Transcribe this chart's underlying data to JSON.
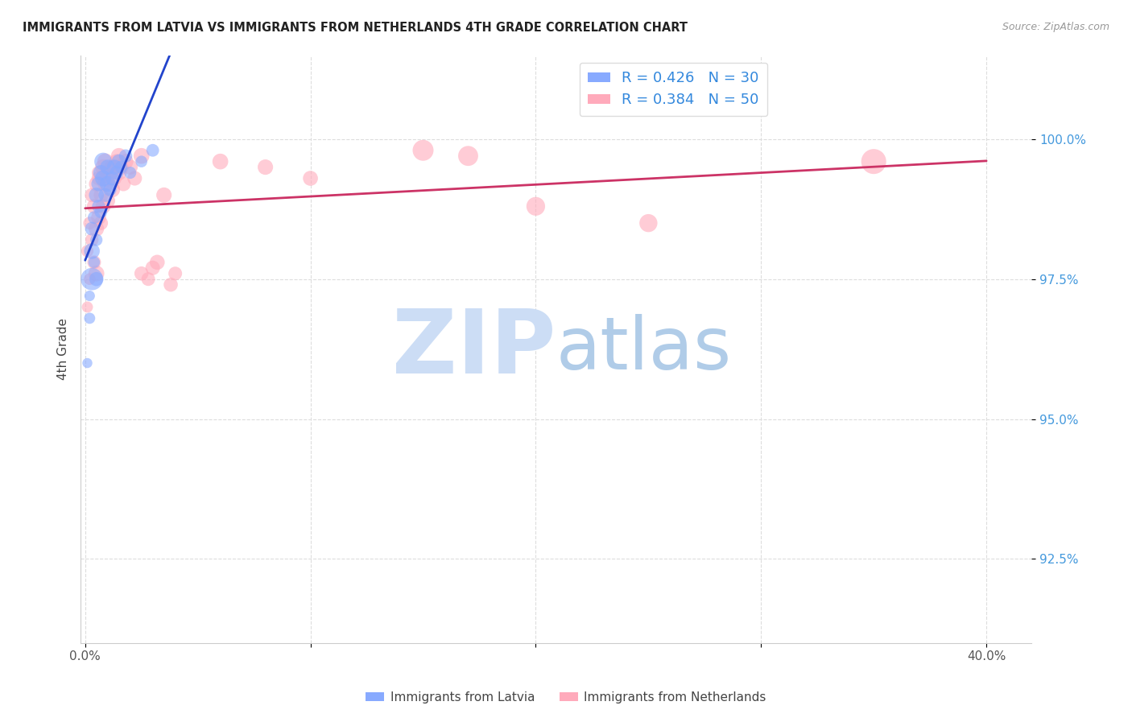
{
  "title": "IMMIGRANTS FROM LATVIA VS IMMIGRANTS FROM NETHERLANDS 4TH GRADE CORRELATION CHART",
  "source": "Source: ZipAtlas.com",
  "xlabel_label": "Immigrants from Latvia",
  "ylabel_label": "4th Grade",
  "xlim": [
    -0.002,
    0.42
  ],
  "ylim": [
    91.0,
    101.5
  ],
  "x_ticks": [
    0.0,
    0.1,
    0.2,
    0.3,
    0.4
  ],
  "x_tick_labels": [
    "0.0%",
    "",
    "",
    "",
    "40.0%"
  ],
  "y_ticks": [
    92.5,
    95.0,
    97.5,
    100.0
  ],
  "y_tick_labels": [
    "92.5%",
    "95.0%",
    "97.5%",
    "100.0%"
  ],
  "latvia_color": "#88aaff",
  "netherlands_color": "#ffaabb",
  "trendline_latvia_color": "#2244cc",
  "trendline_netherlands_color": "#cc3366",
  "legend_text_color": "#3388dd",
  "R_latvia": 0.426,
  "N_latvia": 30,
  "R_netherlands": 0.384,
  "N_netherlands": 50,
  "watermark_zip_color": "#ccddf5",
  "watermark_atlas_color": "#b0cce8",
  "latvia_x": [
    0.001,
    0.002,
    0.002,
    0.003,
    0.003,
    0.003,
    0.004,
    0.004,
    0.005,
    0.005,
    0.005,
    0.006,
    0.006,
    0.007,
    0.007,
    0.008,
    0.008,
    0.009,
    0.01,
    0.01,
    0.011,
    0.012,
    0.013,
    0.014,
    0.015,
    0.016,
    0.018,
    0.02,
    0.025,
    0.03
  ],
  "latvia_y": [
    96.0,
    96.8,
    97.2,
    97.5,
    98.0,
    98.4,
    97.8,
    98.6,
    99.0,
    98.2,
    97.5,
    99.2,
    98.8,
    99.4,
    98.7,
    99.3,
    99.6,
    99.0,
    99.5,
    99.2,
    99.1,
    99.3,
    99.5,
    99.4,
    99.6,
    99.5,
    99.7,
    99.4,
    99.6,
    99.8
  ],
  "latvia_s": [
    80,
    100,
    90,
    400,
    200,
    150,
    110,
    130,
    180,
    120,
    160,
    170,
    140,
    190,
    130,
    210,
    250,
    150,
    180,
    200,
    140,
    160,
    180,
    150,
    170,
    130,
    140,
    120,
    110,
    130
  ],
  "netherlands_x": [
    0.001,
    0.001,
    0.002,
    0.002,
    0.003,
    0.003,
    0.004,
    0.004,
    0.005,
    0.005,
    0.005,
    0.006,
    0.006,
    0.006,
    0.007,
    0.007,
    0.008,
    0.008,
    0.009,
    0.009,
    0.01,
    0.01,
    0.011,
    0.012,
    0.012,
    0.013,
    0.014,
    0.015,
    0.015,
    0.016,
    0.017,
    0.018,
    0.02,
    0.022,
    0.025,
    0.025,
    0.028,
    0.03,
    0.032,
    0.035,
    0.038,
    0.04,
    0.06,
    0.08,
    0.1,
    0.15,
    0.17,
    0.2,
    0.25,
    0.35
  ],
  "netherlands_y": [
    97.0,
    98.0,
    97.5,
    98.5,
    98.2,
    99.0,
    97.8,
    98.8,
    99.2,
    98.4,
    97.6,
    99.3,
    98.6,
    99.4,
    99.0,
    98.5,
    99.5,
    98.8,
    99.2,
    99.6,
    99.3,
    98.9,
    99.4,
    99.1,
    99.5,
    99.3,
    99.6,
    99.4,
    99.7,
    99.5,
    99.2,
    99.6,
    99.5,
    99.3,
    99.7,
    97.6,
    97.5,
    97.7,
    97.8,
    99.0,
    97.4,
    97.6,
    99.6,
    99.5,
    99.3,
    99.8,
    99.7,
    98.8,
    98.5,
    99.6
  ],
  "netherlands_s": [
    100,
    120,
    110,
    130,
    140,
    160,
    150,
    170,
    180,
    190,
    200,
    160,
    180,
    150,
    170,
    160,
    200,
    180,
    190,
    210,
    200,
    180,
    190,
    200,
    180,
    170,
    180,
    190,
    200,
    180,
    170,
    190,
    180,
    170,
    200,
    160,
    150,
    170,
    180,
    190,
    160,
    150,
    200,
    190,
    180,
    350,
    320,
    280,
    260,
    500
  ]
}
